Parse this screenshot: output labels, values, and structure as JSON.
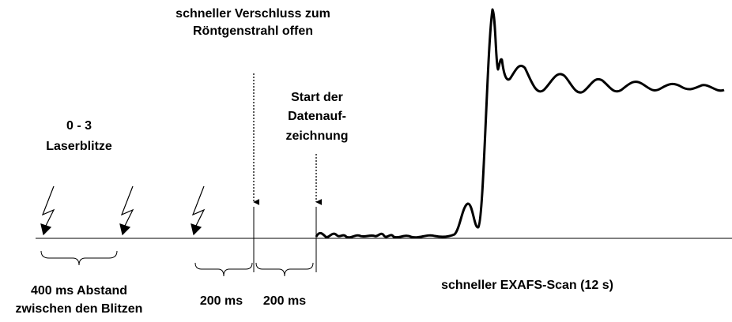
{
  "labels": {
    "shutter": [
      "schneller Verschluss zum",
      "Röntgenstrahl offen"
    ],
    "start": [
      "Start der",
      "Datenauf-",
      "zeichnung"
    ],
    "flashes": [
      "0 -  3",
      "Laserblitze"
    ],
    "interval": [
      "400 ms Abstand",
      "zwischen den Blitzen"
    ],
    "delay1": "200 ms",
    "delay2": "200 ms",
    "scan": "schneller EXAFS-Scan (12 s)"
  }
}
